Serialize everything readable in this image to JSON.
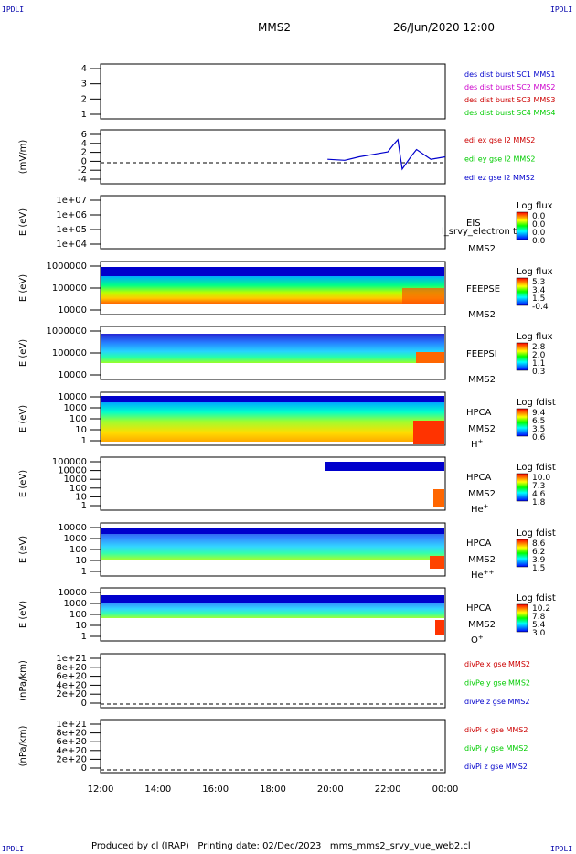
{
  "header": {
    "corner_label": "IPDLI",
    "spacecraft": "MMS2",
    "datetime": "26/Jun/2020 12:00"
  },
  "footer": {
    "text": "Produced by cl (IRAP)   Printing date: 02/Dec/2023   mms_mms2_srvy_vue_web2.cl"
  },
  "chart_data": [
    {
      "type": "line",
      "panel": "dist-burst-availability",
      "yticks": [
        "4",
        "3",
        "2",
        "1"
      ],
      "ylim": [
        0.7,
        4.5
      ],
      "series": [
        {
          "name": "des dist burst SC1 MMS1",
          "color": "#0000cc"
        },
        {
          "name": "des dist burst SC2 MMS2",
          "color": "#cc00cc"
        },
        {
          "name": "des dist burst SC3 MMS3",
          "color": "#cc0000"
        },
        {
          "name": "des dist burst SC4 MMS4",
          "color": "#00cc00"
        }
      ]
    },
    {
      "type": "line",
      "panel": "edi-electric-field",
      "ylabel": "(mV/m)",
      "yticks": [
        "6",
        "4",
        "2",
        "0",
        "-2",
        "-4"
      ],
      "ylim": [
        -4.5,
        6.5
      ],
      "series": [
        {
          "name": "edi ex gse l2 MMS2",
          "color": "#cc0000"
        },
        {
          "name": "edi ey gse l2 MMS2",
          "color": "#00cc00"
        },
        {
          "name": "edi ez gse l2 MMS2",
          "color": "#0000cc"
        }
      ],
      "data_time_range_hours": [
        19.9,
        24.0
      ],
      "approx_values_mV_per_m": {
        "time_hours": [
          19.9,
          20.5,
          21.0,
          21.5,
          22.0,
          22.2,
          22.35,
          22.5,
          22.8,
          23.0,
          23.5,
          24.0
        ],
        "ez": [
          0.5,
          0.3,
          1.0,
          1.5,
          2.0,
          3.5,
          4.5,
          -1.5,
          1.0,
          2.5,
          0.5,
          1.0
        ]
      }
    },
    {
      "type": "heatmap",
      "panel": "eis",
      "ylabel": "E (eV)",
      "yticks": [
        "1e+07",
        "1e+06",
        "1e+05",
        "1e+04"
      ],
      "instrument": "EIS",
      "spacecraft": "MMS2",
      "overlay_text": "l_srvy_electron to",
      "colorbar": {
        "title": "Log flux",
        "ticks": [
          "0.0",
          "0.0",
          "0.0",
          "0.0"
        ]
      }
    },
    {
      "type": "heatmap",
      "panel": "feeps-electron",
      "ylabel": "E (eV)",
      "yticks": [
        "1000000",
        "100000",
        "10000"
      ],
      "instrument": "FEEPSE",
      "spacecraft": "MMS2",
      "colorbar": {
        "title": "Log flux",
        "ticks": [
          "5.3",
          "3.4",
          "1.5",
          "-0.4"
        ]
      }
    },
    {
      "type": "heatmap",
      "panel": "feeps-ion",
      "ylabel": "E (eV)",
      "yticks": [
        "1000000",
        "100000",
        "10000"
      ],
      "instrument": "FEEPSI",
      "spacecraft": "MMS2",
      "colorbar": {
        "title": "Log flux",
        "ticks": [
          "2.8",
          "2.0",
          "1.1",
          "0.3"
        ]
      }
    },
    {
      "type": "heatmap",
      "panel": "hpca-h",
      "ylabel": "E (eV)",
      "yticks": [
        "10000",
        "1000",
        "100",
        "10",
        "1"
      ],
      "instrument": "HPCA",
      "spacecraft": "MMS2",
      "species": "H",
      "species_charge": "+",
      "colorbar": {
        "title": "Log fdist",
        "ticks": [
          "9.4",
          "6.5",
          "3.5",
          "0.6"
        ]
      }
    },
    {
      "type": "heatmap",
      "panel": "hpca-he-plus",
      "ylabel": "E (eV)",
      "yticks": [
        "100000",
        "10000",
        "1000",
        "100",
        "10",
        "1"
      ],
      "instrument": "HPCA",
      "spacecraft": "MMS2",
      "species": "He",
      "species_charge": "+",
      "colorbar": {
        "title": "Log fdist",
        "ticks": [
          "10.0",
          "7.3",
          "4.6",
          "1.8"
        ]
      }
    },
    {
      "type": "heatmap",
      "panel": "hpca-he-plus-plus",
      "ylabel": "E (eV)",
      "yticks": [
        "10000",
        "1000",
        "100",
        "10",
        "1"
      ],
      "instrument": "HPCA",
      "spacecraft": "MMS2",
      "species": "He",
      "species_charge": "++",
      "colorbar": {
        "title": "Log fdist",
        "ticks": [
          "8.6",
          "6.2",
          "3.9",
          "1.5"
        ]
      }
    },
    {
      "type": "heatmap",
      "panel": "hpca-o",
      "ylabel": "E (eV)",
      "yticks": [
        "10000",
        "1000",
        "100",
        "10",
        "1"
      ],
      "instrument": "HPCA",
      "spacecraft": "MMS2",
      "species": "O",
      "species_charge": "+",
      "colorbar": {
        "title": "Log fdist",
        "ticks": [
          "10.2",
          "7.8",
          "5.4",
          "3.0"
        ]
      }
    },
    {
      "type": "line",
      "panel": "div-pe",
      "ylabel": "(nPa/km)",
      "yticks": [
        "1e+21",
        "8e+20",
        "6e+20",
        "4e+20",
        "2e+20",
        "0"
      ],
      "series": [
        {
          "name": "divPe x gse MMS2",
          "color": "#cc0000"
        },
        {
          "name": "divPe y gse MMS2",
          "color": "#00cc00"
        },
        {
          "name": "divPe z gse MMS2",
          "color": "#0000cc"
        }
      ]
    },
    {
      "type": "line",
      "panel": "div-pi",
      "ylabel": "(nPa/km)",
      "yticks": [
        "1e+21",
        "8e+20",
        "6e+20",
        "4e+20",
        "2e+20",
        "0"
      ],
      "series": [
        {
          "name": "divPi x gse MMS2",
          "color": "#cc0000"
        },
        {
          "name": "divPi y gse MMS2",
          "color": "#00cc00"
        },
        {
          "name": "divPi z gse MMS2",
          "color": "#0000cc"
        }
      ]
    }
  ],
  "time_axis": {
    "ticks": [
      "12:00",
      "14:00",
      "16:00",
      "18:00",
      "20:00",
      "22:00",
      "00:00"
    ]
  }
}
